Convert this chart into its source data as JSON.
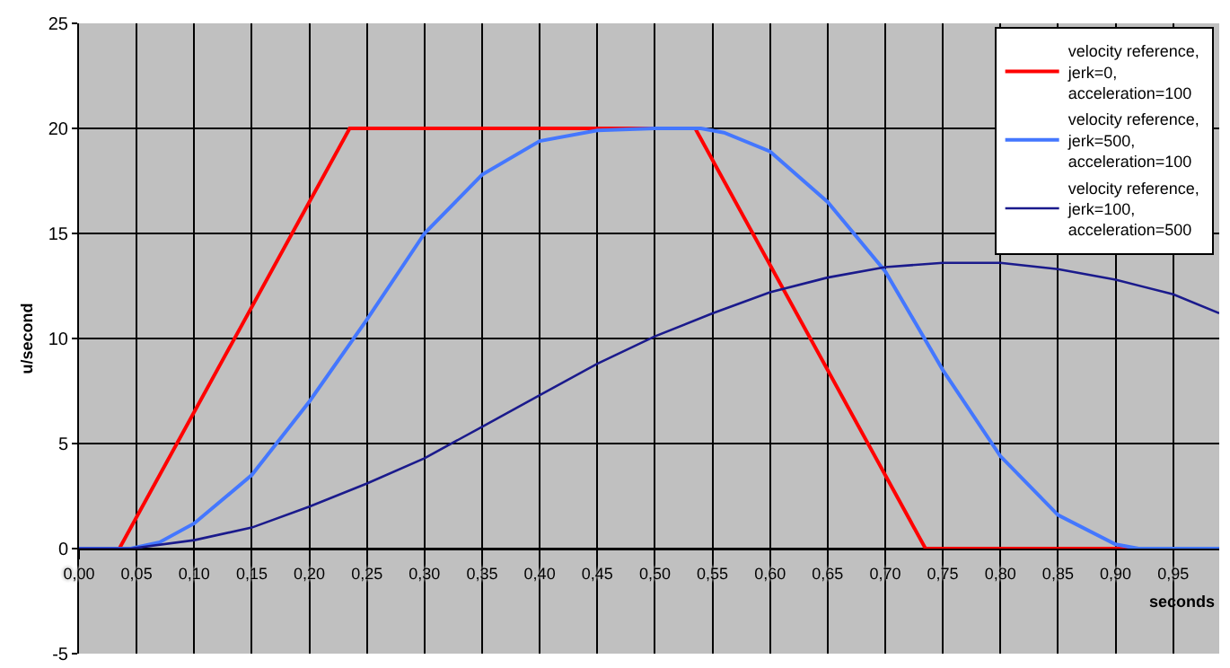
{
  "chart_data": {
    "type": "line",
    "xlabel": "seconds",
    "ylabel": "u/second",
    "xlim": [
      0,
      0.99
    ],
    "xticks": [
      {
        "value": 0,
        "label": "0,00"
      },
      {
        "value": 0.05,
        "label": "0,05"
      },
      {
        "value": 0.1,
        "label": "0,10"
      },
      {
        "value": 0.15,
        "label": "0,15"
      },
      {
        "value": 0.2,
        "label": "0,20"
      },
      {
        "value": 0.25,
        "label": "0,25"
      },
      {
        "value": 0.3,
        "label": "0,30"
      },
      {
        "value": 0.35,
        "label": "0,35"
      },
      {
        "value": 0.4,
        "label": "0,40"
      },
      {
        "value": 0.45,
        "label": "0,45"
      },
      {
        "value": 0.5,
        "label": "0,50"
      },
      {
        "value": 0.55,
        "label": "0,55"
      },
      {
        "value": 0.6,
        "label": "0,60"
      },
      {
        "value": 0.65,
        "label": "0,65"
      },
      {
        "value": 0.7,
        "label": "0,70"
      },
      {
        "value": 0.75,
        "label": "0,75"
      },
      {
        "value": 0.8,
        "label": "0,80"
      },
      {
        "value": 0.85,
        "label": "0,85"
      },
      {
        "value": 0.9,
        "label": "0,90"
      },
      {
        "value": 0.95,
        "label": "0,95"
      }
    ],
    "ylim": [
      -5,
      25
    ],
    "yticks": [
      -5,
      0,
      5,
      10,
      15,
      20,
      25
    ],
    "grid": true,
    "legend": "top right",
    "marker": "none",
    "line_style": "solid",
    "series": [
      {
        "name": "velocity reference, jerk=0, acceleration=100",
        "color": "#ff0000",
        "x": [
          0,
          0.035,
          0.235,
          0.535,
          0.735,
          0.99
        ],
        "values": [
          0,
          0,
          20,
          20,
          0,
          0
        ]
      },
      {
        "name": "velocity reference, jerk=500, acceleration=100",
        "color": "#4477ff",
        "x": [
          0,
          0.045,
          0.07,
          0.1,
          0.15,
          0.2,
          0.25,
          0.3,
          0.35,
          0.4,
          0.45,
          0.5,
          0.54,
          0.56,
          0.6,
          0.65,
          0.7,
          0.75,
          0.8,
          0.85,
          0.9,
          0.92,
          0.99
        ],
        "values": [
          0,
          0,
          0.3,
          1.2,
          3.5,
          7,
          10.9,
          15,
          17.8,
          19.4,
          19.9,
          20,
          20,
          19.8,
          18.9,
          16.5,
          13.2,
          8.5,
          4.4,
          1.6,
          0.2,
          0,
          0
        ]
      },
      {
        "name": "velocity reference, jerk=100, acceleration=500",
        "color": "#1a1a8c",
        "x": [
          0,
          0.045,
          0.1,
          0.15,
          0.2,
          0.25,
          0.3,
          0.35,
          0.4,
          0.45,
          0.5,
          0.55,
          0.6,
          0.65,
          0.7,
          0.75,
          0.8,
          0.85,
          0.9,
          0.95,
          0.99
        ],
        "values": [
          0,
          0,
          0.4,
          1,
          2,
          3.1,
          4.3,
          5.8,
          7.3,
          8.8,
          10.1,
          11.2,
          12.2,
          12.9,
          13.4,
          13.6,
          13.6,
          13.3,
          12.8,
          12.1,
          11.2
        ]
      }
    ]
  }
}
